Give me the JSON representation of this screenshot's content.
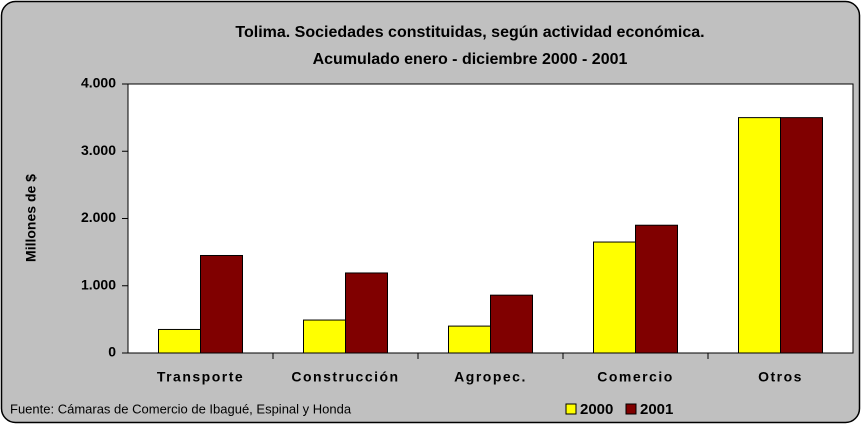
{
  "chart_data": {
    "type": "bar",
    "title": "Tolima. Sociedades constituidas, según actividad económica.",
    "subtitle": "Acumulado enero - diciembre 2000 - 2001",
    "y_label": "Millones de $",
    "source": "Fuente: Cámaras de Comercio de Ibagué, Espinal y Honda",
    "categories": [
      "Transporte",
      "Construcción",
      "Agropec.",
      "Comercio",
      "Otros"
    ],
    "series": [
      {
        "name": "2000",
        "color": "#ffff00",
        "values": [
          350,
          490,
          400,
          1650,
          3500
        ]
      },
      {
        "name": "2001",
        "color": "#800000",
        "values": [
          1450,
          1190,
          860,
          1900,
          3500
        ]
      }
    ],
    "ylim": [
      0,
      4000
    ],
    "yticks": [
      {
        "value": 0,
        "label": "0"
      },
      {
        "value": 1000,
        "label": "1.000"
      },
      {
        "value": 2000,
        "label": "2.000"
      },
      {
        "value": 3000,
        "label": "3.000"
      },
      {
        "value": 4000,
        "label": "4.000"
      }
    ],
    "legend": "bottom-right"
  }
}
